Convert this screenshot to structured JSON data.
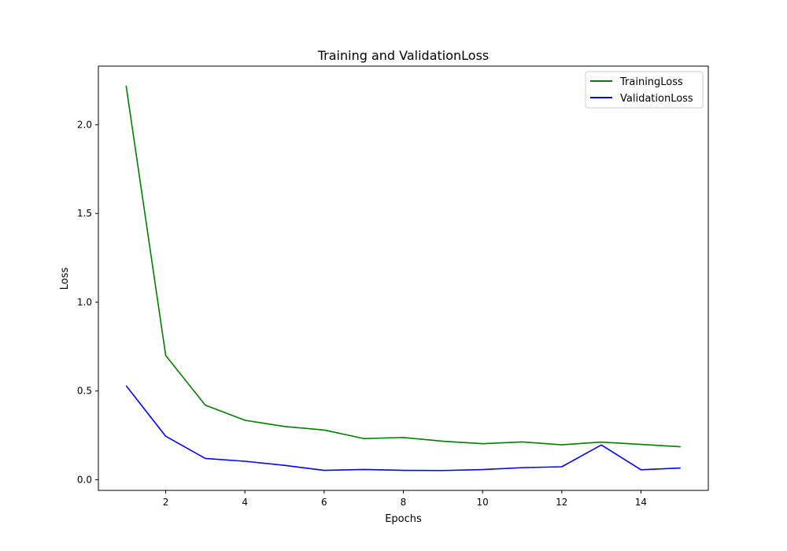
{
  "chart_data": {
    "type": "line",
    "title": "Training and ValidationLoss",
    "xlabel": "Epochs",
    "ylabel": "Loss",
    "xlim": [
      0.3,
      15.7
    ],
    "ylim": [
      -0.06,
      2.33
    ],
    "x_ticks": [
      2,
      4,
      6,
      8,
      10,
      12,
      14
    ],
    "y_ticks": [
      0.0,
      0.5,
      1.0,
      1.5,
      2.0
    ],
    "y_tick_labels": [
      "0.0",
      "0.5",
      "1.0",
      "1.5",
      "2.0"
    ],
    "grid": false,
    "legend_position": "top-right",
    "x": [
      1,
      2,
      3,
      4,
      5,
      6,
      7,
      8,
      9,
      10,
      11,
      12,
      13,
      14,
      15
    ],
    "series": [
      {
        "name": "TrainingLoss",
        "color": "#008000",
        "values": [
          2.22,
          0.7,
          0.42,
          0.335,
          0.3,
          0.28,
          0.232,
          0.238,
          0.217,
          0.203,
          0.213,
          0.197,
          0.212,
          0.199,
          0.186
        ]
      },
      {
        "name": "ValidationLoss",
        "color": "#0000ff",
        "values": [
          0.53,
          0.245,
          0.12,
          0.104,
          0.081,
          0.053,
          0.058,
          0.053,
          0.052,
          0.057,
          0.068,
          0.073,
          0.196,
          0.056,
          0.066
        ]
      }
    ]
  }
}
